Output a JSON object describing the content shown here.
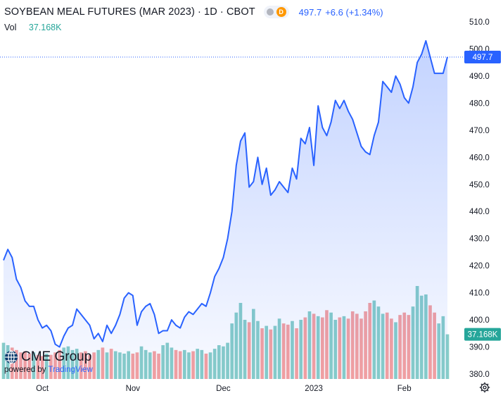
{
  "header": {
    "title": "SOYBEAN MEAL FUTURES (MAR 2023) · 1D · CBOT",
    "badge_letter": "D",
    "last_price": "497.7",
    "change": "+6.6 (+1.34%)"
  },
  "volume": {
    "label": "Vol",
    "value": "37.168K"
  },
  "logo": {
    "brand": "CME Group",
    "powered": "powered by",
    "tradingview": "TradingView"
  },
  "colors": {
    "line": "#2962ff",
    "vol_up": "#26a69a",
    "vol_down": "#ef5350",
    "price_label": "#2962ff"
  },
  "chart_data": {
    "type": "area",
    "yaxis": {
      "min": 380,
      "max": 510,
      "ticks": [
        380,
        390,
        400,
        410,
        420,
        430,
        440,
        450,
        460,
        470,
        480,
        490,
        500,
        510
      ]
    },
    "xaxis": {
      "tick_labels": [
        "Oct",
        "Nov",
        "Dec",
        "2023",
        "Feb"
      ],
      "tick_index": [
        9,
        30,
        51,
        72,
        93
      ]
    },
    "last_value_label": "497.7",
    "volume_label": "37.168K",
    "series": [
      {
        "values": [
          422,
          426,
          423,
          415,
          412,
          407,
          405,
          405,
          400,
          397,
          398,
          396,
          391,
          390,
          394,
          397,
          398,
          404,
          402,
          400,
          398,
          393,
          395,
          392,
          398,
          395,
          398,
          402,
          408,
          410,
          409,
          398,
          403,
          405,
          406,
          402,
          395,
          396,
          396,
          400,
          398,
          397,
          401,
          403,
          402,
          404,
          406,
          405,
          410,
          416,
          419,
          423,
          430,
          440,
          457,
          466,
          469,
          449,
          451,
          460,
          450,
          456,
          446,
          448,
          451,
          449,
          447,
          456,
          452,
          467,
          465,
          471,
          457,
          479,
          471,
          468,
          473,
          481,
          478,
          481,
          477,
          474,
          469,
          464,
          462,
          461,
          468,
          473,
          488,
          486,
          484,
          490,
          487,
          482,
          480,
          486,
          495,
          498,
          503,
          497,
          491,
          491,
          491,
          497
        ]
      },
      {
        "values": [
          30,
          28,
          26,
          24,
          22,
          23,
          21,
          22,
          20,
          19,
          21,
          20,
          22,
          24,
          26,
          27,
          24,
          25,
          22,
          23,
          20,
          22,
          24,
          26,
          22,
          25,
          23,
          22,
          21,
          23,
          21,
          22,
          27,
          24,
          22,
          23,
          21,
          28,
          30,
          26,
          24,
          23,
          24,
          22,
          23,
          25,
          24,
          21,
          22,
          25,
          28,
          27,
          30,
          46,
          55,
          63,
          49,
          47,
          58,
          48,
          42,
          44,
          41,
          44,
          50,
          46,
          45,
          48,
          42,
          49,
          51,
          56,
          54,
          52,
          51,
          57,
          55,
          49,
          51,
          52,
          50,
          56,
          54,
          50,
          56,
          63,
          65,
          60,
          54,
          55,
          50,
          47,
          53,
          55,
          53,
          60,
          77,
          69,
          70,
          61,
          55,
          46,
          52,
          37
        ]
      }
    ]
  }
}
